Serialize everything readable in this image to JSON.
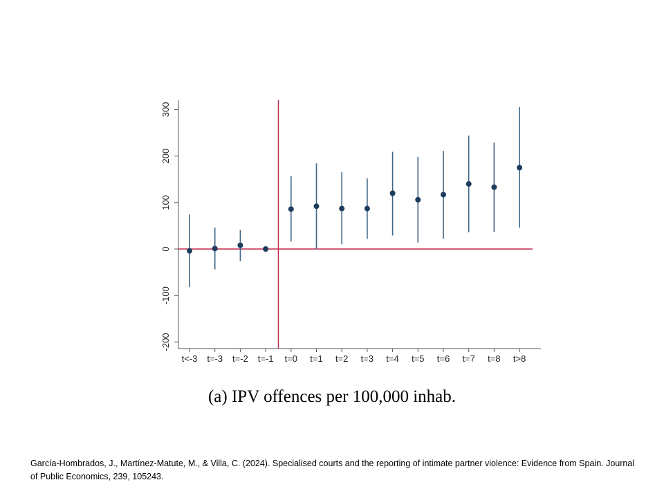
{
  "chart_data": {
    "type": "scatter",
    "title": "",
    "xlabel": "",
    "ylabel": "",
    "categories": [
      "t<-3",
      "t=-3",
      "t=-2",
      "t=-1",
      "t=0",
      "t=1",
      "t=2",
      "t=3",
      "t=4",
      "t=5",
      "t=6",
      "t=7",
      "t=8",
      "t>8"
    ],
    "estimates": [
      -4,
      1,
      8,
      0,
      86,
      92,
      87,
      87,
      120,
      106,
      117,
      140,
      133,
      175
    ],
    "ci_lower": [
      -82,
      -44,
      -26,
      0,
      16,
      0,
      10,
      22,
      29,
      14,
      22,
      36,
      37,
      46
    ],
    "ci_upper": [
      74,
      46,
      41,
      0,
      157,
      184,
      165,
      152,
      209,
      198,
      211,
      244,
      229,
      305
    ],
    "yticks": [
      300,
      200,
      100,
      0,
      -100,
      -200
    ],
    "ylim": [
      -215,
      318
    ],
    "reference_line_y": 0,
    "reference_line_x": "between t=-1 and t=0",
    "grid": false,
    "legend": "none",
    "colors": {
      "point": "#1d3c5e",
      "ci_line": "#3f6584",
      "reference_line": "#c02a4d",
      "axis": "#555555"
    }
  },
  "caption": "(a) IPV offences per 100,000 inhab.",
  "citation": "García-Hombrados, J., Martínez-Matute, M., & Villa, C. (2024). Specialised courts and the reporting of intimate partner violence: Evidence from Spain. Journal of Public Economics, 239, 105243."
}
